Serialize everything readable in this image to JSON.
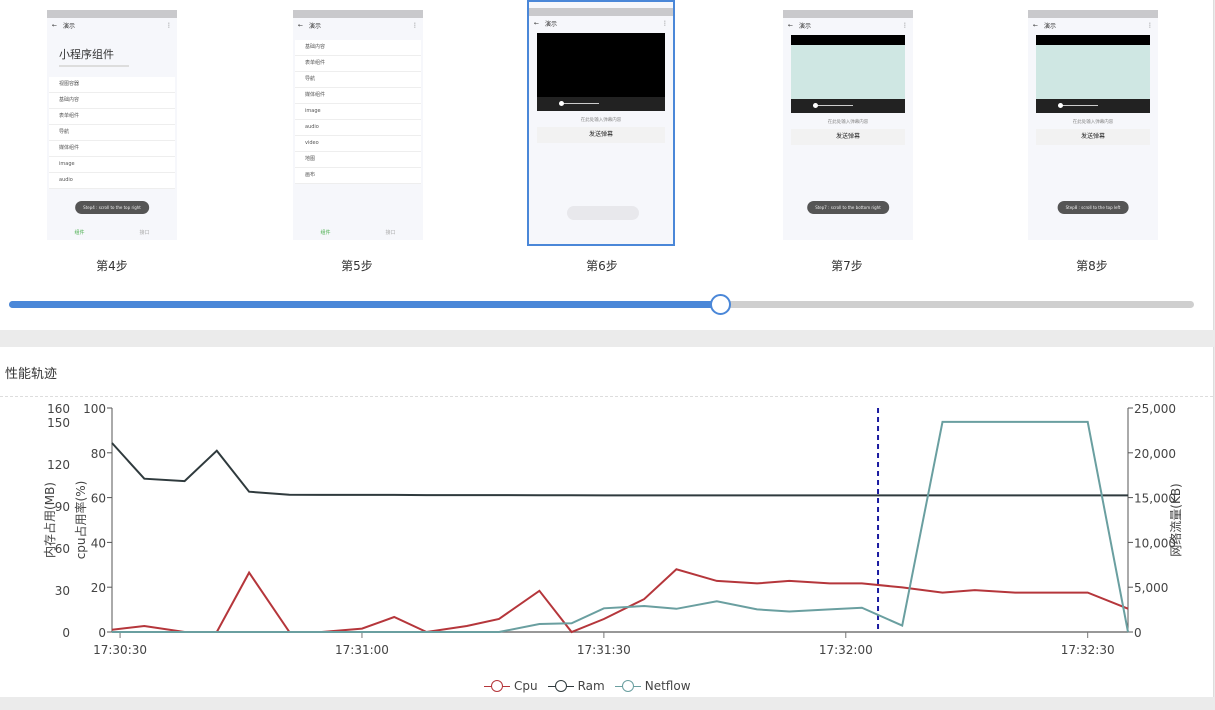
{
  "steps": {
    "items": [
      {
        "label": "第4步",
        "header": "演示",
        "title": "小程序组件",
        "list": [
          "视图容器",
          "基础内容",
          "表单组件",
          "导航",
          "媒体组件",
          "image",
          "audio"
        ],
        "toast": "Step4 : scroll to the top right",
        "nav": [
          "组件",
          "接口"
        ]
      },
      {
        "label": "第5步",
        "header": "演示",
        "list": [
          "基础内容",
          "表单组件",
          "导航",
          "媒体组件",
          "image",
          "audio",
          "video",
          "地图",
          "画布"
        ],
        "nav": [
          "组件",
          "接口"
        ]
      },
      {
        "label": "第6步",
        "header": "演示",
        "hint": "在此处输入弹幕内容",
        "send": "发送弹幕"
      },
      {
        "label": "第7步",
        "header": "演示",
        "hint": "在此处输入弹幕内容",
        "send": "发送弹幕",
        "toast": "Step7 : scroll to the bottom right"
      },
      {
        "label": "第8步",
        "header": "演示",
        "hint": "在此处输入弹幕内容",
        "send": "发送弹幕",
        "toast": "Step8 : scroll to the top left"
      }
    ],
    "selected_index": 2,
    "slider_progress": 0.6
  },
  "perf": {
    "title": "性能轨迹"
  },
  "chart_data": {
    "type": "line",
    "x": [
      "17:30:29",
      "17:30:33",
      "17:30:38",
      "17:30:42",
      "17:30:46",
      "17:30:51",
      "17:30:55",
      "17:31:00",
      "17:31:04",
      "17:31:08",
      "17:31:13",
      "17:31:17",
      "17:31:22",
      "17:31:26",
      "17:31:30",
      "17:31:35",
      "17:31:39",
      "17:31:44",
      "17:31:49",
      "17:31:53",
      "17:31:58",
      "17:32:02",
      "17:32:07",
      "17:32:12",
      "17:32:16",
      "17:32:21",
      "17:32:25",
      "17:32:30",
      "17:32:35"
    ],
    "x_ticks": [
      "17:30:30",
      "17:31:00",
      "17:31:30",
      "17:32:00",
      "17:32:30"
    ],
    "x_range": [
      "17:30:29",
      "17:32:35"
    ],
    "marker_time": "17:32:04",
    "axes": {
      "ram": {
        "label": "内存占用(MB)",
        "range": [
          0,
          160
        ],
        "ticks": [
          0,
          30,
          60,
          90,
          120,
          150,
          160
        ]
      },
      "cpu": {
        "label": "cpu占用率(%)",
        "range": [
          0,
          100
        ],
        "ticks": [
          0,
          20,
          40,
          60,
          80,
          100
        ]
      },
      "net": {
        "label": "网络流量(KB)",
        "range": [
          0,
          25000
        ],
        "ticks": [
          0,
          5000,
          10000,
          15000,
          20000,
          25000
        ]
      }
    },
    "series": [
      {
        "name": "Cpu",
        "axis": "cpu",
        "color": "#b5363b",
        "values": [
          1,
          2.7,
          0,
          0,
          26.5,
          0,
          0,
          1.5,
          6.7,
          0,
          2.7,
          5.8,
          18.4,
          0,
          5.8,
          14.7,
          28,
          22.8,
          21.7,
          22.8,
          21.7,
          21.7,
          19.9,
          17.6,
          18.7,
          17.6,
          17.6,
          17.6,
          10.4
        ]
      },
      {
        "name": "Ram",
        "axis": "ram",
        "color": "#2f3a3d",
        "values": [
          135,
          109.5,
          107.8,
          129.5,
          100.2,
          98,
          97.9,
          97.9,
          97.9,
          97.8,
          97.8,
          97.8,
          97.7,
          97.7,
          97.6,
          97.6,
          97.6,
          97.6,
          97.6,
          97.6,
          97.6,
          97.6,
          97.6,
          97.6,
          97.6,
          97.6,
          97.6,
          97.6,
          97.6
        ]
      },
      {
        "name": "Netflow",
        "axis": "net",
        "color": "#6a9fa0",
        "values": [
          0,
          0,
          0,
          0,
          0,
          0,
          0,
          0,
          0,
          0,
          0,
          0,
          890,
          970,
          2640,
          2900,
          2590,
          3430,
          2520,
          2290,
          2520,
          2710,
          710,
          23450,
          23450,
          23450,
          23450,
          23450,
          0
        ]
      }
    ],
    "legend_position": "bottom",
    "grid": false
  }
}
